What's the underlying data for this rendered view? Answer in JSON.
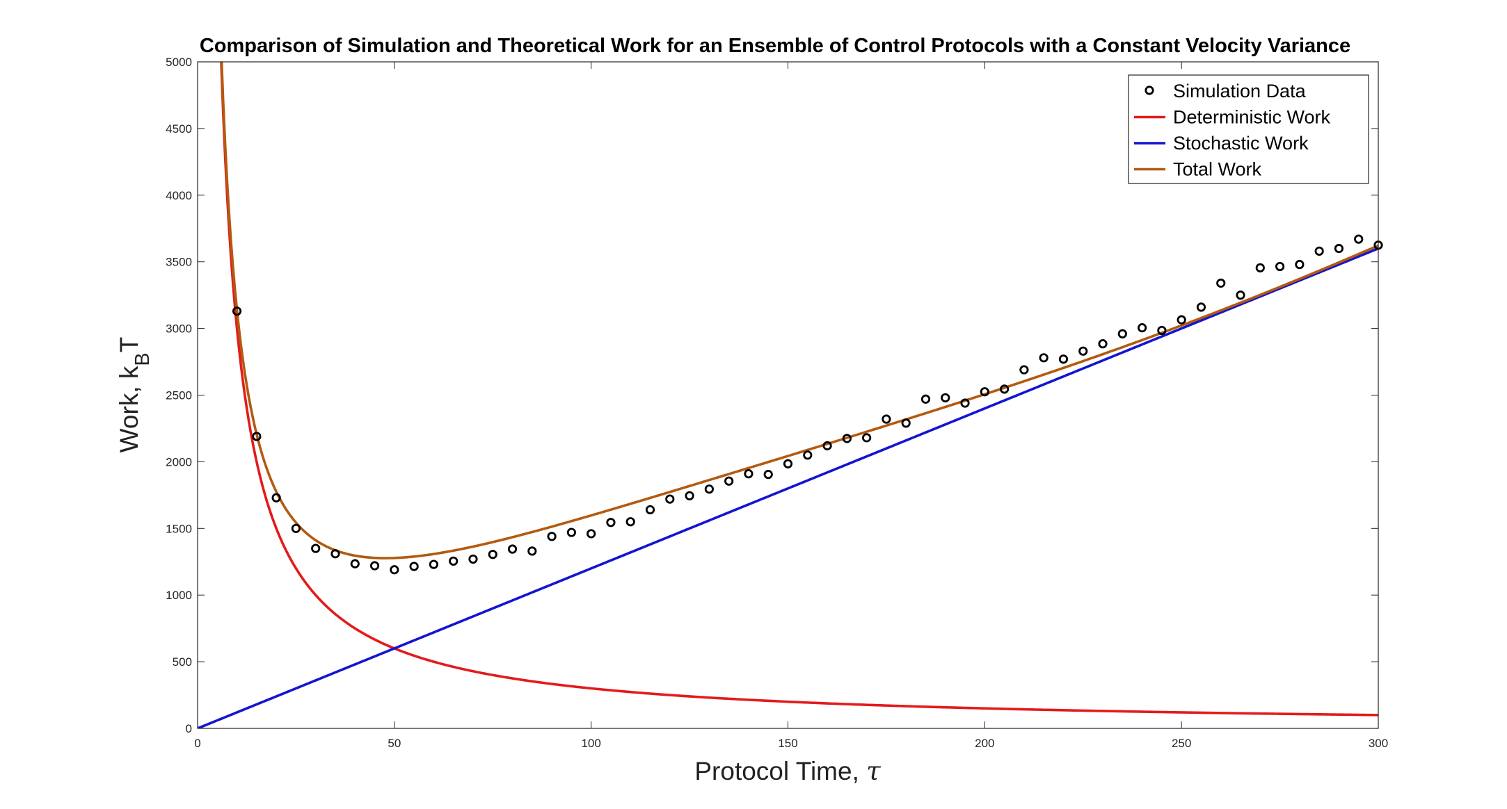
{
  "chart_data": {
    "type": "line",
    "title": "Comparison of Simulation and Theoretical Work for an Ensemble of Control Protocols with a Constant Velocity Variance",
    "xlabel": "Protocol Time, ",
    "xlabel_symbol": "τ",
    "ylabel_main": "Work, k",
    "ylabel_sub": "B",
    "ylabel_tail": "T",
    "xlim": [
      0,
      300
    ],
    "ylim": [
      0,
      5000
    ],
    "xticks": [
      "0",
      "50",
      "100",
      "150",
      "200",
      "250",
      "300"
    ],
    "xtick_values": [
      0,
      50,
      100,
      150,
      200,
      250,
      300
    ],
    "yticks": [
      "0",
      "500",
      "1000",
      "1500",
      "2000",
      "2500",
      "3000",
      "3500",
      "4000",
      "4500",
      "5000"
    ],
    "ytick_values": [
      0,
      500,
      1000,
      1500,
      2000,
      2500,
      3000,
      3500,
      4000,
      4500,
      5000
    ],
    "grid": false,
    "legend_position": "top-right",
    "series": [
      {
        "name": "Simulation Data",
        "kind": "scatter",
        "color": "#000000",
        "x": [
          10,
          15,
          20,
          25,
          30,
          35,
          40,
          45,
          50,
          55,
          60,
          65,
          70,
          75,
          80,
          85,
          90,
          95,
          100,
          105,
          110,
          115,
          120,
          125,
          130,
          135,
          140,
          145,
          150,
          155,
          160,
          165,
          170,
          175,
          180,
          185,
          190,
          195,
          200,
          205,
          210,
          215,
          220,
          225,
          230,
          235,
          240,
          245,
          250,
          255,
          260,
          265,
          270,
          275,
          280,
          285,
          290,
          295,
          300
        ],
        "y": [
          3130,
          2190,
          1730,
          1500,
          1350,
          1310,
          1235,
          1220,
          1190,
          1215,
          1230,
          1255,
          1270,
          1305,
          1345,
          1330,
          1440,
          1470,
          1460,
          1545,
          1550,
          1640,
          1720,
          1745,
          1795,
          1855,
          1910,
          1905,
          1985,
          2050,
          2120,
          2175,
          2180,
          2320,
          2290,
          2470,
          2480,
          2440,
          2525,
          2545,
          2690,
          2780,
          2770,
          2830,
          2885,
          2960,
          3005,
          2985,
          3065,
          3160,
          3340,
          3250,
          3455,
          3465,
          3480,
          3580,
          3600,
          3670,
          3625
        ]
      },
      {
        "name": "Deterministic Work",
        "kind": "line",
        "color": "#e31b1b",
        "formula": "30000/x",
        "coef": 30000
      },
      {
        "name": "Stochastic Work",
        "kind": "line",
        "color": "#1414d2",
        "formula": "12*x",
        "slope": 12
      },
      {
        "name": "Total Work",
        "kind": "line",
        "color": "#b35a0f",
        "formula": "30000/x + 12*x + 100*sin(pi*x/175)"
      }
    ]
  }
}
